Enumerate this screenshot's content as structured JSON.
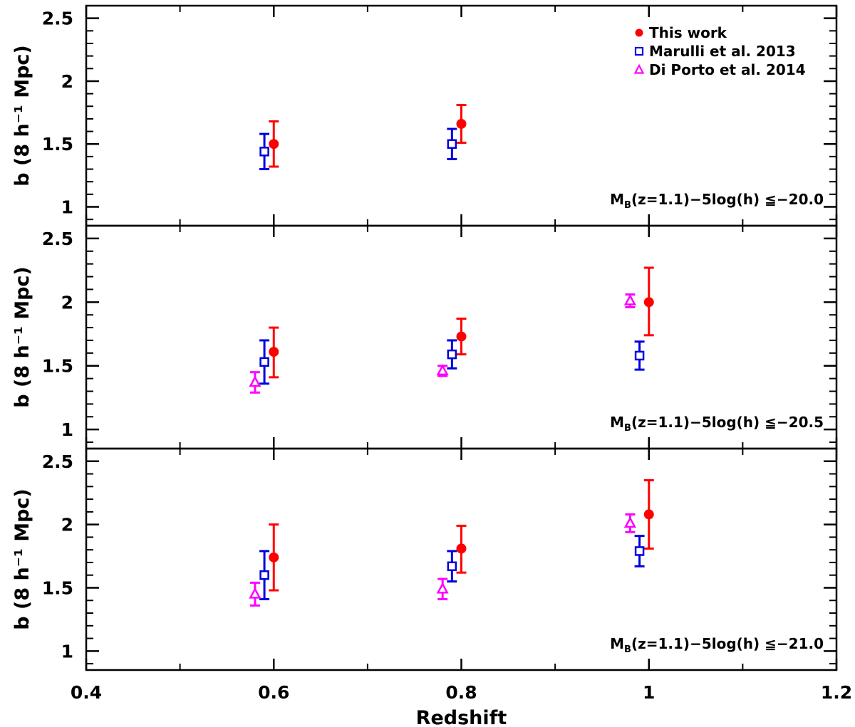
{
  "chart_data": {
    "type": "scatter",
    "xlabel": "Redshift",
    "ylabel": "b (8 h⁻¹ Mpc)",
    "xlim": [
      0.4,
      1.2
    ],
    "ylim": [
      0.85,
      2.6
    ],
    "x_ticks": [
      "0.4",
      "0.6",
      "0.8",
      "1",
      "1.2"
    ],
    "y_ticks": [
      "1",
      "1.5",
      "2",
      "2.5"
    ],
    "legend": {
      "position": "top-right",
      "entries": [
        {
          "name": "This work",
          "marker": "filled-hexagon",
          "color": "#ff0000"
        },
        {
          "name": "Marulli et al. 2013",
          "marker": "open-square",
          "color": "#0000dd"
        },
        {
          "name": "Di Porto et al. 2014",
          "marker": "open-triangle",
          "color": "#ff00ff"
        }
      ]
    },
    "panels": [
      {
        "label_main": "M",
        "label_sub": "B",
        "label_rest": "(z=1.1)−5log(h) ≦−20.0",
        "series": [
          {
            "name": "This work",
            "points": [
              {
                "x": 0.6,
                "y": 1.5,
                "lo": 1.32,
                "hi": 1.68
              },
              {
                "x": 0.8,
                "y": 1.66,
                "lo": 1.51,
                "hi": 1.81
              }
            ]
          },
          {
            "name": "Marulli et al. 2013",
            "points": [
              {
                "x": 0.59,
                "y": 1.44,
                "lo": 1.3,
                "hi": 1.58
              },
              {
                "x": 0.79,
                "y": 1.5,
                "lo": 1.38,
                "hi": 1.62
              }
            ]
          },
          {
            "name": "Di Porto et al. 2014",
            "points": []
          }
        ]
      },
      {
        "label_main": "M",
        "label_sub": "B",
        "label_rest": "(z=1.1)−5log(h) ≦−20.5",
        "series": [
          {
            "name": "This work",
            "points": [
              {
                "x": 0.6,
                "y": 1.61,
                "lo": 1.41,
                "hi": 1.8
              },
              {
                "x": 0.8,
                "y": 1.73,
                "lo": 1.59,
                "hi": 1.87
              },
              {
                "x": 1.0,
                "y": 2.0,
                "lo": 1.74,
                "hi": 2.27
              }
            ]
          },
          {
            "name": "Marulli et al. 2013",
            "points": [
              {
                "x": 0.59,
                "y": 1.53,
                "lo": 1.36,
                "hi": 1.7
              },
              {
                "x": 0.79,
                "y": 1.59,
                "lo": 1.48,
                "hi": 1.7
              },
              {
                "x": 0.99,
                "y": 1.58,
                "lo": 1.47,
                "hi": 1.69
              }
            ]
          },
          {
            "name": "Di Porto et al. 2014",
            "points": [
              {
                "x": 0.58,
                "y": 1.37,
                "lo": 1.29,
                "hi": 1.45
              },
              {
                "x": 0.78,
                "y": 1.46,
                "lo": 1.42,
                "hi": 1.5
              },
              {
                "x": 0.98,
                "y": 2.01,
                "lo": 1.96,
                "hi": 2.06
              }
            ]
          }
        ]
      },
      {
        "label_main": "M",
        "label_sub": "B",
        "label_rest": "(z=1.1)−5log(h) ≦−21.0",
        "series": [
          {
            "name": "This work",
            "points": [
              {
                "x": 0.6,
                "y": 1.74,
                "lo": 1.48,
                "hi": 2.0
              },
              {
                "x": 0.8,
                "y": 1.81,
                "lo": 1.62,
                "hi": 1.99
              },
              {
                "x": 1.0,
                "y": 2.08,
                "lo": 1.81,
                "hi": 2.35
              }
            ]
          },
          {
            "name": "Marulli et al. 2013",
            "points": [
              {
                "x": 0.59,
                "y": 1.6,
                "lo": 1.41,
                "hi": 1.79
              },
              {
                "x": 0.79,
                "y": 1.67,
                "lo": 1.55,
                "hi": 1.79
              },
              {
                "x": 0.99,
                "y": 1.79,
                "lo": 1.67,
                "hi": 1.91
              }
            ]
          },
          {
            "name": "Di Porto et al. 2014",
            "points": [
              {
                "x": 0.58,
                "y": 1.45,
                "lo": 1.36,
                "hi": 1.54
              },
              {
                "x": 0.78,
                "y": 1.49,
                "lo": 1.41,
                "hi": 1.57
              },
              {
                "x": 0.98,
                "y": 2.01,
                "lo": 1.94,
                "hi": 2.08
              }
            ]
          }
        ]
      }
    ]
  }
}
